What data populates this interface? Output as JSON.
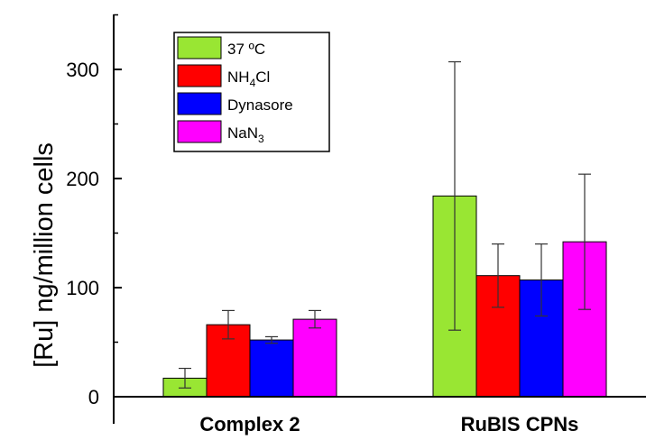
{
  "chart_data": {
    "type": "bar",
    "title": "",
    "xlabel": "",
    "ylabel": "[Ru] ng/million cells",
    "ylim": [
      0,
      350
    ],
    "yticks": [
      0,
      100,
      200,
      300
    ],
    "categories": [
      "Complex 2",
      "RuBIS CPNs"
    ],
    "error_bars": true,
    "grid": false,
    "legend_position": "top-left",
    "series": [
      {
        "name": "37 ºC",
        "color": "#99e633",
        "values": [
          17,
          184
        ],
        "errors": [
          9,
          123
        ]
      },
      {
        "name": "NH4Cl",
        "color": "#ff0000",
        "values": [
          66,
          111
        ],
        "errors": [
          13,
          29
        ]
      },
      {
        "name": "Dynasore",
        "color": "#0000ff",
        "values": [
          52,
          107
        ],
        "errors": [
          3,
          33
        ]
      },
      {
        "name": "NaN3",
        "color": "#ff00ff",
        "values": [
          71,
          142
        ],
        "errors": [
          8,
          62
        ]
      }
    ]
  },
  "legend_labels": [
    {
      "main": "37 ºC",
      "sub": "",
      "rest": ""
    },
    {
      "main": "NH",
      "sub": "4",
      "rest": "Cl"
    },
    {
      "main": "Dynasore",
      "sub": "",
      "rest": ""
    },
    {
      "main": "NaN",
      "sub": "3",
      "rest": ""
    }
  ]
}
